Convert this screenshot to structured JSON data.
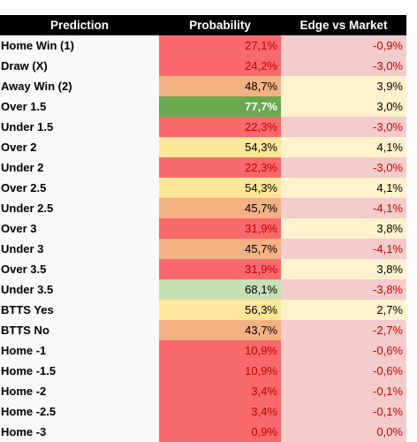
{
  "table": {
    "header": [
      "Prediction",
      "Probability",
      "Edge vs Market"
    ],
    "rows": [
      [
        "Home Win (1)",
        "27,1%",
        "-0,9%"
      ],
      [
        "Draw (X)",
        "24,2%",
        "-3,0%"
      ],
      [
        "Away Win (2)",
        "48,7%",
        "3,9%"
      ],
      [
        "Over 1.5",
        "77,7%",
        "3,0%"
      ],
      [
        "Under 1.5",
        "22,3%",
        "-3,0%"
      ],
      [
        "Over 2",
        "54,3%",
        "4,1%"
      ],
      [
        "Under 2",
        "22,3%",
        "-3,0%"
      ],
      [
        "Over 2.5",
        "54,3%",
        "4,1%"
      ],
      [
        "Under 2.5",
        "45,7%",
        "-4,1%"
      ],
      [
        "Over 3",
        "31,9%",
        "3,8%"
      ],
      [
        "Under 3",
        "45,7%",
        "-4,1%"
      ],
      [
        "Over 3.5",
        "31,9%",
        "3,8%"
      ],
      [
        "Under 3.5",
        "68,1%",
        "-3,8%"
      ],
      [
        "BTTS Yes",
        "56,3%",
        "2,7%"
      ],
      [
        "BTTS No",
        "43,7%",
        "-2,7%"
      ],
      [
        "Home -1",
        "10,9%",
        "-0,6%"
      ],
      [
        "Home -1.5",
        "10,9%",
        "-0,6%"
      ],
      [
        "Home -2",
        "3,4%",
        "-0,1%"
      ],
      [
        "Home -2.5",
        "3,4%",
        "-0,1%"
      ],
      [
        "Home -3",
        "0,9%",
        "0,0%"
      ]
    ],
    "probability_fills": [
      "#f8696b",
      "#f8696b",
      "#f4b183",
      "#6aa84f",
      "#f8696b",
      "#ffe699",
      "#f8696b",
      "#ffe699",
      "#f4b183",
      "#f8696b",
      "#f4b183",
      "#f8696b",
      "#c6e0b4",
      "#ffe699",
      "#f4b183",
      "#f8696b",
      "#f8696b",
      "#f8696b",
      "#f8696b",
      "#f8696b"
    ],
    "edge_fills": [
      "#f4cccc",
      "#f4cccc",
      "#fff2cc",
      "#fff2cc",
      "#f4cccc",
      "#fff2cc",
      "#f4cccc",
      "#fff2cc",
      "#f4cccc",
      "#fff2cc",
      "#f4cccc",
      "#fff2cc",
      "#f4cccc",
      "#fff2cc",
      "#f4cccc",
      "#f4cccc",
      "#f4cccc",
      "#f4cccc",
      "#f4cccc",
      "#f4cccc"
    ]
  }
}
